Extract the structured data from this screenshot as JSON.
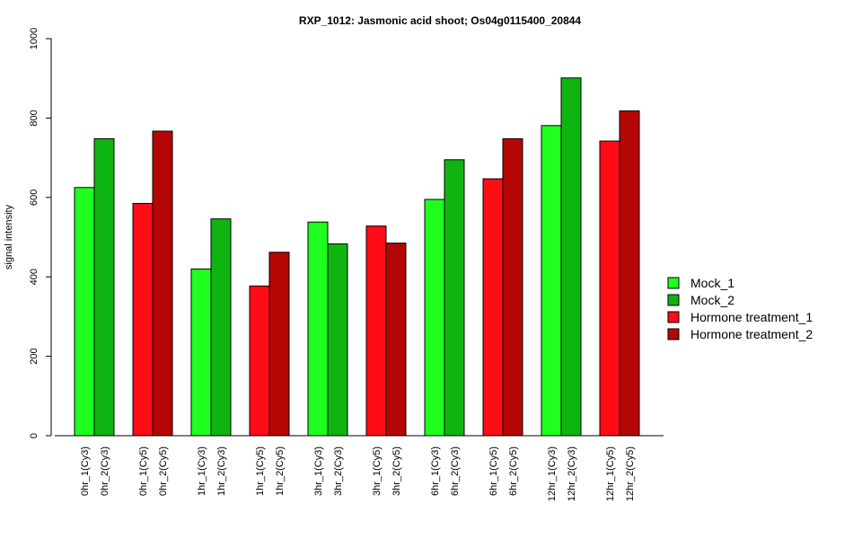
{
  "chart_data": {
    "type": "bar",
    "title": "RXP_1012: Jasmonic acid shoot; Os04g0115400_20844",
    "xlabel": "",
    "ylabel": "signal intensity",
    "ylim": [
      0,
      1000
    ],
    "yticks": [
      0,
      200,
      400,
      600,
      800,
      1000
    ],
    "groups": [
      {
        "labels": [
          "0hr_1(Cy3)",
          "0hr_2(Cy3)"
        ],
        "values": [
          625,
          748
        ],
        "colors": [
          "#1fff1f",
          "#10b410"
        ]
      },
      {
        "labels": [
          "0hr_1(Cy5)",
          "0hr_2(Cy5)"
        ],
        "values": [
          585,
          767
        ],
        "colors": [
          "#ff0d17",
          "#b50606"
        ]
      },
      {
        "labels": [
          "1hr_1(Cy3)",
          "1hr_2(Cy3)"
        ],
        "values": [
          420,
          546
        ],
        "colors": [
          "#1fff1f",
          "#10b410"
        ]
      },
      {
        "labels": [
          "1hr_1(Cy5)",
          "1hr_2(Cy5)"
        ],
        "values": [
          377,
          462
        ],
        "colors": [
          "#ff0d17",
          "#b50606"
        ]
      },
      {
        "labels": [
          "3hr_1(Cy3)",
          "3hr_2(Cy3)"
        ],
        "values": [
          538,
          483
        ],
        "colors": [
          "#1fff1f",
          "#10b410"
        ]
      },
      {
        "labels": [
          "3hr_1(Cy5)",
          "3hr_2(Cy5)"
        ],
        "values": [
          528,
          485
        ],
        "colors": [
          "#ff0d17",
          "#b50606"
        ]
      },
      {
        "labels": [
          "6hr_1(Cy3)",
          "6hr_2(Cy3)"
        ],
        "values": [
          595,
          695
        ],
        "colors": [
          "#1fff1f",
          "#10b410"
        ]
      },
      {
        "labels": [
          "6hr_1(Cy5)",
          "6hr_2(Cy5)"
        ],
        "values": [
          647,
          748
        ],
        "colors": [
          "#ff0d17",
          "#b50606"
        ]
      },
      {
        "labels": [
          "12hr_1(Cy3)",
          "12hr_2(Cy3)"
        ],
        "values": [
          781,
          901
        ],
        "colors": [
          "#1fff1f",
          "#10b410"
        ]
      },
      {
        "labels": [
          "12hr_1(Cy5)",
          "12hr_2(Cy5)"
        ],
        "values": [
          742,
          818
        ],
        "colors": [
          "#ff0d17",
          "#b50606"
        ]
      }
    ],
    "legend": {
      "position": "right",
      "items": [
        {
          "label": "Mock_1",
          "color": "#1fff1f"
        },
        {
          "label": "Mock_2",
          "color": "#10b410"
        },
        {
          "label": "Hormone treatment_1",
          "color": "#ff0d17"
        },
        {
          "label": "Hormone treatment_2",
          "color": "#b50606"
        }
      ]
    },
    "grid": false
  }
}
